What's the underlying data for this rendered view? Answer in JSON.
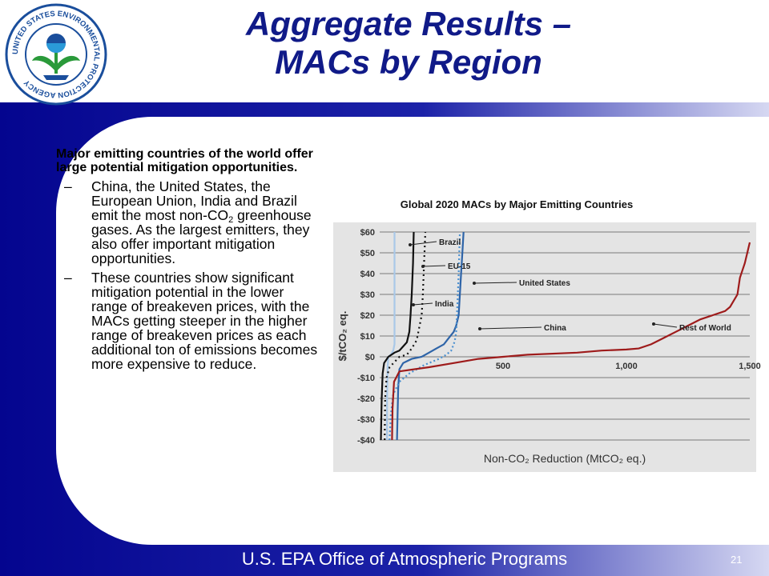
{
  "header": {
    "title_line1": "Aggregate Results –",
    "title_line2": "MACs by Region",
    "logo_text": "UNITED STATES ENVIRONMENTAL PROTECTION AGENCY"
  },
  "body": {
    "lead": "Major emitting countries of the world offer large potential mitigation opportunities.",
    "bullets": [
      {
        "dash": "–",
        "pre": "China, the United States, the European Union, India and Brazil emit the most non-CO",
        "sub": "2",
        "post": " greenhouse gases. As the largest emitters, they also offer important mitigation opportunities."
      },
      {
        "dash": "–",
        "pre": "These countries show significant mitigation potential in the lower range of breakeven prices, with the MACs getting steeper in the higher range of breakeven prices as each additional ton of emissions becomes more expensive to reduce.",
        "sub": "",
        "post": ""
      }
    ]
  },
  "footer": {
    "text": "U.S. EPA Office of Atmospheric Programs",
    "page_number": "21"
  },
  "chart_data": {
    "type": "line",
    "title": "Global 2020 MACs by Major Emitting Countries",
    "xlabel": "Non-CO₂ Reduction (MtCO₂ eq.)",
    "ylabel": "$/tCO₂ eq.",
    "xlim": [
      0,
      1500
    ],
    "ylim": [
      -40,
      60
    ],
    "x_ticks": [
      500,
      1000,
      1500
    ],
    "x_tick_labels": [
      "500",
      "1,000",
      "1,500"
    ],
    "y_ticks": [
      60,
      50,
      40,
      30,
      20,
      10,
      0,
      -10,
      -20,
      -30,
      -40
    ],
    "y_tick_labels": [
      "$60",
      "$50",
      "$40",
      "$30",
      "$20",
      "$10",
      "$0",
      "-$10",
      "-$20",
      "-$30",
      "-$40"
    ],
    "grid": true,
    "series": [
      {
        "name": "Brazil",
        "color": "#a9c8e8",
        "dash": "",
        "points": [
          [
            30,
            -40
          ],
          [
            30,
            -20
          ],
          [
            32,
            -5
          ],
          [
            35,
            0
          ],
          [
            45,
            1
          ],
          [
            55,
            3
          ],
          [
            60,
            6
          ],
          [
            60,
            60
          ]
        ]
      },
      {
        "name": "EU-15",
        "color": "#111111",
        "dash": "2,4",
        "points": [
          [
            20,
            -40
          ],
          [
            22,
            -20
          ],
          [
            28,
            -10
          ],
          [
            40,
            -5
          ],
          [
            80,
            0
          ],
          [
            110,
            1
          ],
          [
            130,
            4
          ],
          [
            150,
            8
          ],
          [
            160,
            14
          ],
          [
            170,
            20
          ],
          [
            175,
            30
          ],
          [
            180,
            45
          ],
          [
            185,
            60
          ]
        ]
      },
      {
        "name": "India",
        "color": "#111111",
        "dash": "",
        "points": [
          [
            5,
            -40
          ],
          [
            8,
            -20
          ],
          [
            12,
            -8
          ],
          [
            18,
            -3
          ],
          [
            35,
            0
          ],
          [
            60,
            2
          ],
          [
            80,
            3
          ],
          [
            95,
            5
          ],
          [
            110,
            7
          ],
          [
            120,
            12
          ],
          [
            125,
            20
          ],
          [
            130,
            30
          ],
          [
            135,
            45
          ],
          [
            138,
            60
          ]
        ]
      },
      {
        "name": "United States",
        "color": "#2e64a8",
        "dash": "",
        "points": [
          [
            70,
            -40
          ],
          [
            72,
            -30
          ],
          [
            75,
            -15
          ],
          [
            80,
            -6
          ],
          [
            95,
            -3
          ],
          [
            130,
            -1
          ],
          [
            170,
            0
          ],
          [
            200,
            2
          ],
          [
            230,
            4
          ],
          [
            260,
            6
          ],
          [
            280,
            9
          ],
          [
            300,
            12
          ],
          [
            310,
            15
          ],
          [
            320,
            20
          ],
          [
            325,
            30
          ],
          [
            330,
            40
          ],
          [
            335,
            50
          ],
          [
            340,
            60
          ]
        ]
      },
      {
        "name": "China",
        "color": "#4a90d0",
        "dash": "2,3",
        "points": [
          [
            40,
            -40
          ],
          [
            45,
            -28
          ],
          [
            55,
            -18
          ],
          [
            80,
            -12
          ],
          [
            120,
            -8
          ],
          [
            180,
            -4
          ],
          [
            240,
            -1
          ],
          [
            270,
            1
          ],
          [
            290,
            3
          ],
          [
            300,
            6
          ],
          [
            305,
            8
          ],
          [
            310,
            12
          ],
          [
            315,
            25
          ],
          [
            320,
            40
          ],
          [
            325,
            60
          ]
        ]
      },
      {
        "name": "Rest of World",
        "color": "#9e1b1b",
        "dash": "",
        "points": [
          [
            50,
            -40
          ],
          [
            52,
            -25
          ],
          [
            58,
            -12
          ],
          [
            80,
            -7
          ],
          [
            200,
            -5
          ],
          [
            300,
            -3
          ],
          [
            400,
            -1
          ],
          [
            500,
            0
          ],
          [
            600,
            1
          ],
          [
            800,
            2
          ],
          [
            900,
            3
          ],
          [
            1000,
            3.5
          ],
          [
            1050,
            4
          ],
          [
            1100,
            6
          ],
          [
            1150,
            9
          ],
          [
            1200,
            12
          ],
          [
            1250,
            15
          ],
          [
            1300,
            18
          ],
          [
            1350,
            20
          ],
          [
            1400,
            22
          ],
          [
            1420,
            24
          ],
          [
            1450,
            30
          ],
          [
            1460,
            38
          ],
          [
            1480,
            45
          ],
          [
            1490,
            50
          ],
          [
            1500,
            55
          ]
        ]
      }
    ],
    "annotations": [
      {
        "text": "Brazil",
        "arrow_to_series": "Brazil"
      },
      {
        "text": "EU-15",
        "arrow_to_series": "EU-15"
      },
      {
        "text": "United States",
        "arrow_to_series": "United States"
      },
      {
        "text": "India",
        "arrow_to_series": "India"
      },
      {
        "text": "China",
        "arrow_to_series": "China"
      },
      {
        "text": "Rest of World",
        "arrow_to_series": "Rest of World"
      }
    ]
  }
}
